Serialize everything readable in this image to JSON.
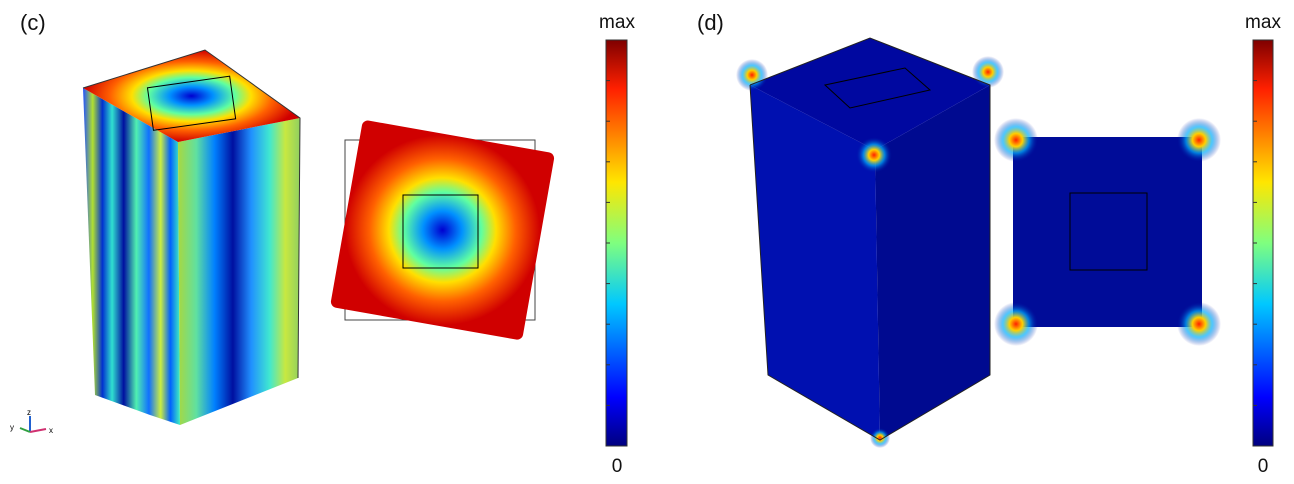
{
  "panels": [
    {
      "label": "(c)",
      "colorbar": {
        "top_label": "max",
        "bottom_label": "0"
      },
      "axes": {
        "z": "z",
        "y": "y",
        "x": "x"
      }
    },
    {
      "label": "(d)",
      "colorbar": {
        "top_label": "max",
        "bottom_label": "0"
      }
    }
  ]
}
